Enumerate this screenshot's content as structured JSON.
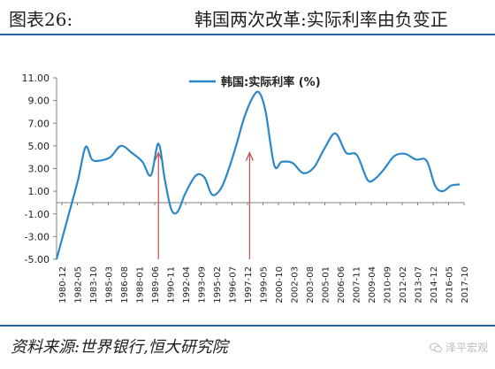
{
  "header": {
    "figure_number": "图表26:",
    "title": "韩国两次改革:实际利率由负变正"
  },
  "footer": {
    "source": "资料来源:世界银行,恒大研究院",
    "watermark": "泽平宏观"
  },
  "colors": {
    "series": "#2b87c9",
    "arrow": "#c0504d",
    "rule": "#2a63a8",
    "axis": "#808080"
  },
  "chart_data": {
    "type": "line",
    "title": "",
    "xlabel": "",
    "ylabel": "",
    "ylim": [
      -5.0,
      11.0
    ],
    "yticks": [
      "11.00",
      "9.00",
      "7.00",
      "5.00",
      "3.00",
      "1.00",
      "-1.00",
      "-3.00",
      "-5.00"
    ],
    "xlim": [
      1980.0,
      2018.0
    ],
    "legend": "top-left",
    "grid": false,
    "xtick_labels": [
      "1980-12",
      "1982-05",
      "1983-10",
      "1985-03",
      "1986-08",
      "1988-01",
      "1989-06",
      "1990-11",
      "1992-04",
      "1993-09",
      "1995-02",
      "1996-07",
      "1997-12",
      "1999-05",
      "2000-10",
      "2002-03",
      "2003-08",
      "2005-01",
      "2006-06",
      "2007-11",
      "2009-04",
      "2010-09",
      "2012-02",
      "2013-07",
      "2014-12",
      "2016-05",
      "2017-10"
    ],
    "series": [
      {
        "name": "韩国:实际利率 (%)",
        "x": [
          1980.0,
          1981.0,
          1982.0,
          1982.7,
          1983.3,
          1984.0,
          1985.0,
          1986.0,
          1987.0,
          1988.0,
          1988.8,
          1989.5,
          1990.1,
          1990.7,
          1991.3,
          1992.0,
          1993.0,
          1993.8,
          1994.5,
          1995.3,
          1996.0,
          1996.8,
          1997.5,
          1998.3,
          1998.9,
          1999.5,
          2000.3,
          2001.0,
          2002.0,
          2003.0,
          2004.0,
          2005.0,
          2006.0,
          2007.0,
          2008.0,
          2009.0,
          2009.7,
          2010.5,
          2011.5,
          2012.5,
          2013.5,
          2014.5,
          2015.3,
          2016.0,
          2016.8,
          2017.6
        ],
        "y": [
          -5.0,
          -1.5,
          2.0,
          4.9,
          3.8,
          3.7,
          4.0,
          5.0,
          4.4,
          3.6,
          2.4,
          5.2,
          2.0,
          -0.6,
          -0.8,
          0.8,
          2.4,
          2.2,
          0.7,
          1.2,
          2.8,
          5.2,
          7.5,
          9.3,
          9.7,
          8.0,
          3.3,
          3.6,
          3.5,
          2.6,
          3.1,
          4.8,
          6.1,
          4.4,
          4.2,
          2.0,
          2.1,
          2.9,
          4.1,
          4.3,
          3.8,
          3.7,
          1.5,
          1.0,
          1.5,
          1.6
        ]
      }
    ],
    "markers": [
      {
        "label": "arrow",
        "x": 1989.5,
        "y_from": -5.0,
        "y_to": 4.4
      },
      {
        "label": "arrow",
        "x": 1998.0,
        "y_from": -5.0,
        "y_to": 4.4
      }
    ]
  }
}
